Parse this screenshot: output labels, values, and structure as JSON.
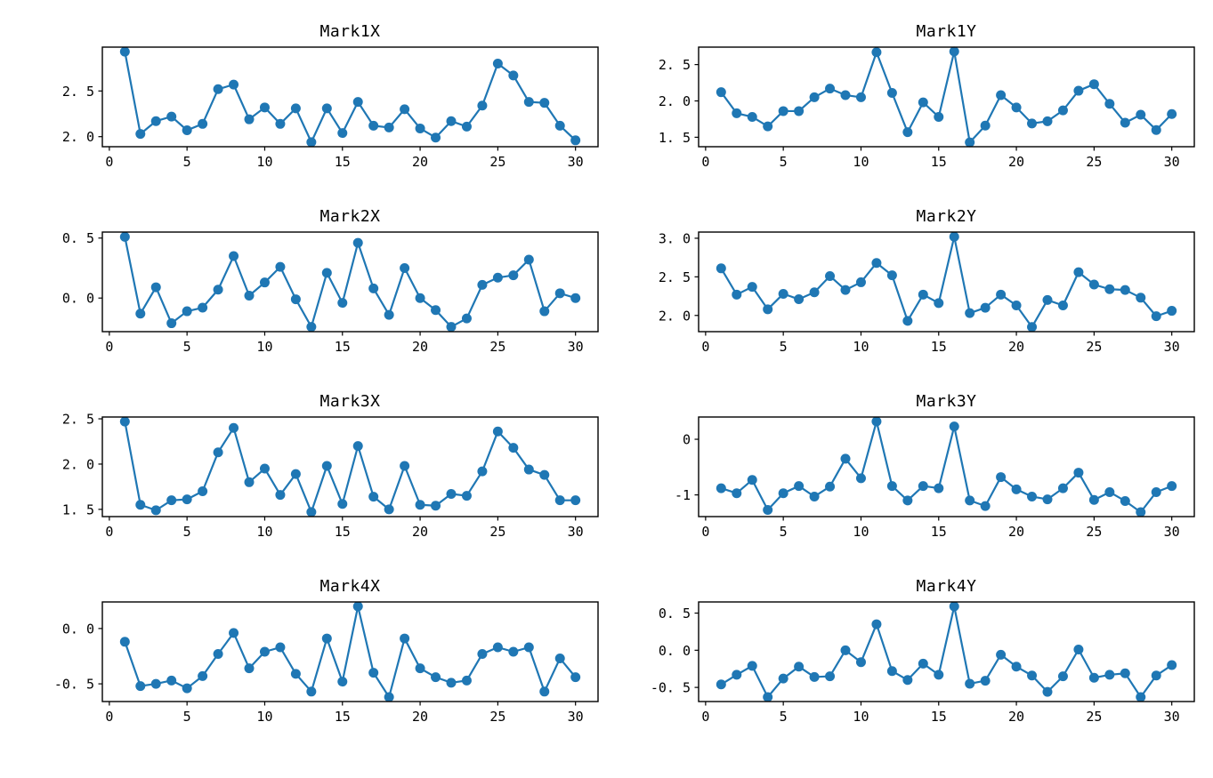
{
  "figure": {
    "background_color": "#ffffff",
    "line_color": "#1f77b4",
    "spine_color": "#000000",
    "text_color": "#000000",
    "layout": "4 rows x 2 columns of subplots",
    "grid": false,
    "legend": null
  },
  "chart_data": [
    {
      "type": "line",
      "title": "Mark1X",
      "marker": "circle",
      "x": [
        1,
        2,
        3,
        4,
        5,
        6,
        7,
        8,
        9,
        10,
        11,
        12,
        13,
        14,
        15,
        16,
        17,
        18,
        19,
        20,
        21,
        22,
        23,
        24,
        25,
        26,
        27,
        28,
        29,
        30
      ],
      "values": [
        2.93,
        2.03,
        2.17,
        2.22,
        2.07,
        2.14,
        2.52,
        2.57,
        2.19,
        2.32,
        2.14,
        2.31,
        1.94,
        2.31,
        2.04,
        2.38,
        2.12,
        2.1,
        2.3,
        2.09,
        1.99,
        2.17,
        2.11,
        2.34,
        2.8,
        2.67,
        2.38,
        2.37,
        2.12,
        1.96
      ],
      "xlim": [
        -0.45,
        31.45
      ],
      "ylim": [
        1.89,
        2.98
      ],
      "xticks": [
        0,
        5,
        10,
        15,
        20,
        25,
        30
      ],
      "xtick_labels": [
        "0",
        "5",
        "10",
        "15",
        "20",
        "25",
        "30"
      ],
      "yticks": [
        2.0,
        2.5
      ],
      "ytick_labels": [
        "2. 0",
        "2. 5"
      ]
    },
    {
      "type": "line",
      "title": "Mark1Y",
      "marker": "circle",
      "x": [
        1,
        2,
        3,
        4,
        5,
        6,
        7,
        8,
        9,
        10,
        11,
        12,
        13,
        14,
        15,
        16,
        17,
        18,
        19,
        20,
        21,
        22,
        23,
        24,
        25,
        26,
        27,
        28,
        29,
        30
      ],
      "values": [
        2.12,
        1.83,
        1.78,
        1.65,
        1.86,
        1.86,
        2.05,
        2.17,
        2.08,
        2.05,
        2.67,
        2.11,
        1.57,
        1.98,
        1.78,
        2.68,
        1.43,
        1.66,
        2.08,
        1.91,
        1.69,
        1.72,
        1.87,
        2.14,
        2.23,
        1.96,
        1.7,
        1.81,
        1.6,
        1.82
      ],
      "xlim": [
        -0.45,
        31.45
      ],
      "ylim": [
        1.37,
        2.74
      ],
      "xticks": [
        0,
        5,
        10,
        15,
        20,
        25,
        30
      ],
      "xtick_labels": [
        "0",
        "5",
        "10",
        "15",
        "20",
        "25",
        "30"
      ],
      "yticks": [
        1.5,
        2.0,
        2.5
      ],
      "ytick_labels": [
        "1. 5",
        "2. 0",
        "2. 5"
      ]
    },
    {
      "type": "line",
      "title": "Mark2X",
      "marker": "circle",
      "x": [
        1,
        2,
        3,
        4,
        5,
        6,
        7,
        8,
        9,
        10,
        11,
        12,
        13,
        14,
        15,
        16,
        17,
        18,
        19,
        20,
        21,
        22,
        23,
        24,
        25,
        26,
        27,
        28,
        29,
        30
      ],
      "values": [
        0.51,
        -0.13,
        0.09,
        -0.21,
        -0.11,
        -0.08,
        0.07,
        0.35,
        0.02,
        0.13,
        0.26,
        -0.01,
        -0.24,
        0.21,
        -0.04,
        0.46,
        0.08,
        -0.14,
        0.25,
        0.0,
        -0.1,
        -0.24,
        -0.17,
        0.11,
        0.17,
        0.19,
        0.32,
        -0.11,
        0.04,
        0.0
      ],
      "xlim": [
        -0.45,
        31.45
      ],
      "ylim": [
        -0.28,
        0.55
      ],
      "xticks": [
        0,
        5,
        10,
        15,
        20,
        25,
        30
      ],
      "xtick_labels": [
        "0",
        "5",
        "10",
        "15",
        "20",
        "25",
        "30"
      ],
      "yticks": [
        0.0,
        0.5
      ],
      "ytick_labels": [
        "0. 0",
        "0. 5"
      ]
    },
    {
      "type": "line",
      "title": "Mark2Y",
      "marker": "circle",
      "x": [
        1,
        2,
        3,
        4,
        5,
        6,
        7,
        8,
        9,
        10,
        11,
        12,
        13,
        14,
        15,
        16,
        17,
        18,
        19,
        20,
        21,
        22,
        23,
        24,
        25,
        26,
        27,
        28,
        29,
        30
      ],
      "values": [
        2.61,
        2.27,
        2.37,
        2.08,
        2.28,
        2.21,
        2.3,
        2.51,
        2.33,
        2.43,
        2.68,
        2.52,
        1.93,
        2.27,
        2.16,
        3.02,
        2.03,
        2.1,
        2.27,
        2.13,
        1.85,
        2.2,
        2.13,
        2.56,
        2.4,
        2.34,
        2.33,
        2.23,
        1.99,
        2.06
      ],
      "xlim": [
        -0.45,
        31.45
      ],
      "ylim": [
        1.79,
        3.08
      ],
      "xticks": [
        0,
        5,
        10,
        15,
        20,
        25,
        30
      ],
      "xtick_labels": [
        "0",
        "5",
        "10",
        "15",
        "20",
        "25",
        "30"
      ],
      "yticks": [
        2.0,
        2.5,
        3.0
      ],
      "ytick_labels": [
        "2. 0",
        "2. 5",
        "3. 0"
      ]
    },
    {
      "type": "line",
      "title": "Mark3X",
      "marker": "circle",
      "x": [
        1,
        2,
        3,
        4,
        5,
        6,
        7,
        8,
        9,
        10,
        11,
        12,
        13,
        14,
        15,
        16,
        17,
        18,
        19,
        20,
        21,
        22,
        23,
        24,
        25,
        26,
        27,
        28,
        29,
        30
      ],
      "values": [
        2.47,
        1.55,
        1.49,
        1.6,
        1.61,
        1.7,
        2.13,
        2.4,
        1.8,
        1.95,
        1.66,
        1.89,
        1.47,
        1.98,
        1.56,
        2.2,
        1.64,
        1.5,
        1.98,
        1.55,
        1.54,
        1.67,
        1.65,
        1.92,
        2.36,
        2.18,
        1.94,
        1.88,
        1.6,
        1.6
      ],
      "xlim": [
        -0.45,
        31.45
      ],
      "ylim": [
        1.42,
        2.52
      ],
      "xticks": [
        0,
        5,
        10,
        15,
        20,
        25,
        30
      ],
      "xtick_labels": [
        "0",
        "5",
        "10",
        "15",
        "20",
        "25",
        "30"
      ],
      "yticks": [
        1.5,
        2.0,
        2.5
      ],
      "ytick_labels": [
        "1. 5",
        "2. 0",
        "2. 5"
      ]
    },
    {
      "type": "line",
      "title": "Mark3Y",
      "marker": "circle",
      "x": [
        1,
        2,
        3,
        4,
        5,
        6,
        7,
        8,
        9,
        10,
        11,
        12,
        13,
        14,
        15,
        16,
        17,
        18,
        19,
        20,
        21,
        22,
        23,
        24,
        25,
        26,
        27,
        28,
        29,
        30
      ],
      "values": [
        -0.88,
        -0.97,
        -0.73,
        -1.27,
        -0.97,
        -0.84,
        -1.03,
        -0.85,
        -0.35,
        -0.7,
        0.32,
        -0.84,
        -1.1,
        -0.84,
        -0.88,
        0.23,
        -1.1,
        -1.2,
        -0.68,
        -0.9,
        -1.03,
        -1.08,
        -0.88,
        -0.6,
        -1.09,
        -0.95,
        -1.11,
        -1.31,
        -0.95,
        -0.84
      ],
      "xlim": [
        -0.45,
        31.45
      ],
      "ylim": [
        -1.39,
        0.4
      ],
      "xticks": [
        0,
        5,
        10,
        15,
        20,
        25,
        30
      ],
      "xtick_labels": [
        "0",
        "5",
        "10",
        "15",
        "20",
        "25",
        "30"
      ],
      "yticks": [
        -1,
        0
      ],
      "ytick_labels": [
        "-1",
        "0"
      ]
    },
    {
      "type": "line",
      "title": "Mark4X",
      "marker": "circle",
      "x": [
        1,
        2,
        3,
        4,
        5,
        6,
        7,
        8,
        9,
        10,
        11,
        12,
        13,
        14,
        15,
        16,
        17,
        18,
        19,
        20,
        21,
        22,
        23,
        24,
        25,
        26,
        27,
        28,
        29,
        30
      ],
      "values": [
        -0.12,
        -0.52,
        -0.5,
        -0.47,
        -0.54,
        -0.43,
        -0.23,
        -0.04,
        -0.36,
        -0.21,
        -0.17,
        -0.41,
        -0.57,
        -0.09,
        -0.48,
        0.2,
        -0.4,
        -0.62,
        -0.09,
        -0.36,
        -0.44,
        -0.49,
        -0.47,
        -0.23,
        -0.17,
        -0.21,
        -0.17,
        -0.57,
        -0.27,
        -0.44
      ],
      "xlim": [
        -0.45,
        31.45
      ],
      "ylim": [
        -0.66,
        0.24
      ],
      "xticks": [
        0,
        5,
        10,
        15,
        20,
        25,
        30
      ],
      "xtick_labels": [
        "0",
        "5",
        "10",
        "15",
        "20",
        "25",
        "30"
      ],
      "yticks": [
        -0.5,
        0.0
      ],
      "ytick_labels": [
        "-0. 5",
        "0. 0"
      ]
    },
    {
      "type": "line",
      "title": "Mark4Y",
      "marker": "circle",
      "x": [
        1,
        2,
        3,
        4,
        5,
        6,
        7,
        8,
        9,
        10,
        11,
        12,
        13,
        14,
        15,
        16,
        17,
        18,
        19,
        20,
        21,
        22,
        23,
        24,
        25,
        26,
        27,
        28,
        29,
        30
      ],
      "values": [
        -0.46,
        -0.33,
        -0.21,
        -0.63,
        -0.38,
        -0.22,
        -0.36,
        -0.35,
        0.0,
        -0.16,
        0.35,
        -0.28,
        -0.4,
        -0.18,
        -0.33,
        0.59,
        -0.45,
        -0.41,
        -0.06,
        -0.22,
        -0.34,
        -0.56,
        -0.35,
        0.01,
        -0.37,
        -0.33,
        -0.31,
        -0.63,
        -0.34,
        -0.2
      ],
      "xlim": [
        -0.45,
        31.45
      ],
      "ylim": [
        -0.69,
        0.65
      ],
      "xticks": [
        0,
        5,
        10,
        15,
        20,
        25,
        30
      ],
      "xtick_labels": [
        "0",
        "5",
        "10",
        "15",
        "20",
        "25",
        "30"
      ],
      "yticks": [
        -0.5,
        0.0,
        0.5
      ],
      "ytick_labels": [
        "-0. 5",
        "0. 0",
        "0. 5"
      ]
    }
  ]
}
